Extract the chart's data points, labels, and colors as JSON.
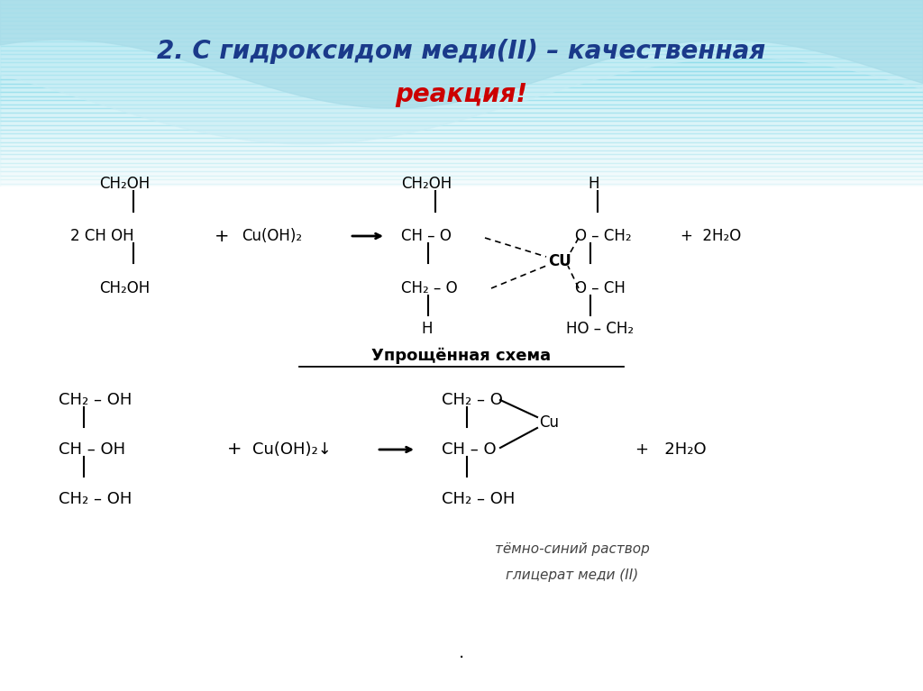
{
  "title_line1": "2. С гидроксидом меди(II) – качественная",
  "title_line2": "реакция!",
  "title_color1": "#1a3a8a",
  "title_color2": "#cc0000",
  "bg_color_top": "#b0e8f0",
  "bg_color_bottom": "#ffffff",
  "section_label": "Упрощённая схема",
  "italic_note_line1": "тёмно-синий раствор",
  "italic_note_line2": "глицерат меди (II)"
}
